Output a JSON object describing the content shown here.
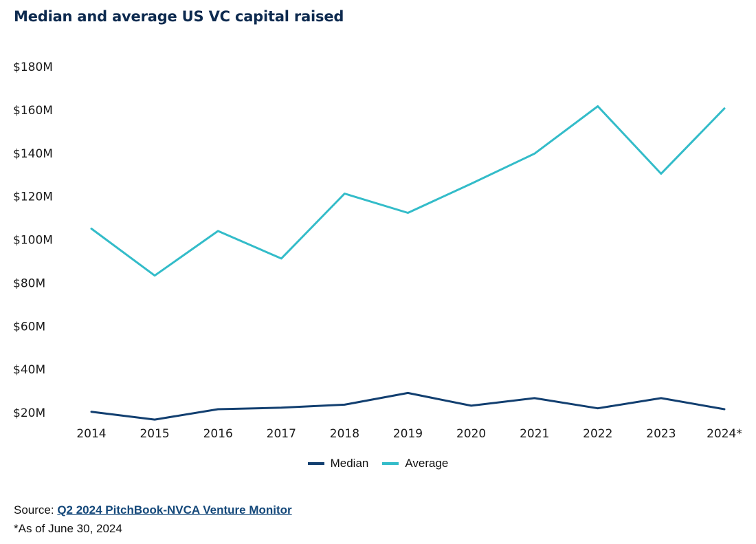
{
  "colors": {
    "median": "#123f70",
    "average": "#33bcc9",
    "title": "#0d2a4f"
  },
  "source": {
    "label": "Source:",
    "link_text": "Q2 2024 PitchBook-NVCA Venture Monitor"
  },
  "note": "*As of June 30, 2024",
  "chart_data": {
    "type": "line",
    "title": "Median and average US VC capital raised",
    "xlabel": "",
    "ylabel": "",
    "categories": [
      "2014",
      "2015",
      "2016",
      "2017",
      "2018",
      "2019",
      "2020",
      "2021",
      "2022",
      "2023",
      "2024*"
    ],
    "ylim": [
      20,
      180
    ],
    "yticks": [
      "$20M",
      "$40M",
      "$60M",
      "$80M",
      "$100M",
      "$120M",
      "$140M",
      "$160M",
      "$180M"
    ],
    "grid": false,
    "legend_position": "bottom-center",
    "series": [
      {
        "name": "Median",
        "values": [
          20.4,
          16.8,
          21.6,
          22.3,
          23.7,
          29.1,
          23.2,
          26.7,
          22.0,
          26.7,
          21.6
        ]
      },
      {
        "name": "Average",
        "values": [
          105.1,
          83.4,
          104.0,
          91.3,
          121.3,
          112.4,
          125.9,
          139.8,
          161.7,
          130.5,
          160.7
        ]
      }
    ]
  }
}
